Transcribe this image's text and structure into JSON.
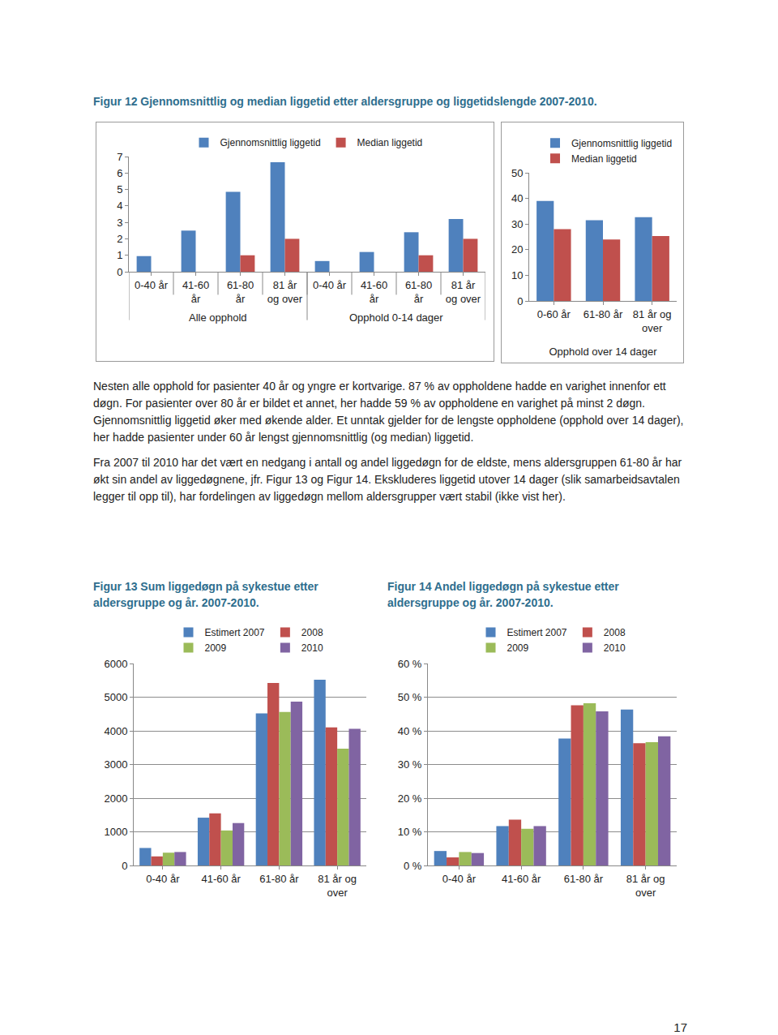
{
  "document": {
    "figure12_caption": "Figur 12 Gjennomsnittlig og median liggetid etter aldersgruppe og liggetidslengde 2007-2010.",
    "paragraphs": [
      "Nesten alle opphold for pasienter 40 år og yngre er kortvarige. 87 % av oppholdene hadde en varighet innenfor ett døgn. For pasienter over 80 år er bildet et annet, her hadde 59 % av oppholdene en varighet på minst 2 døgn. Gjennomsnittlig liggetid øker med økende alder. Et unntak gjelder for de lengste oppholdene (opphold over 14 dager), her hadde pasienter under 60 år lengst gjennomsnittlig (og median) liggetid.",
      "Fra 2007 til 2010 har det vært en nedgang i antall og andel liggedøgn for de eldste, mens aldersgruppen 61-80 år har økt sin andel av liggedøgnene, jfr. Figur 13 og Figur 14. Ekskluderes liggetid utover 14 dager (slik samarbeidsavtalen legger til opp til), har fordelingen av liggedøgn mellom aldersgrupper vært stabil (ikke vist her)."
    ],
    "page_number": "17"
  },
  "chart_data": [
    {
      "type": "bar",
      "groups": [
        {
          "name": "Alle opphold",
          "categories": [
            "0-40 år",
            "41-60 år",
            "61-80 år",
            "81 år og over"
          ]
        },
        {
          "name": "Opphold 0-14 dager",
          "categories": [
            "0-40 år",
            "41-60 år",
            "61-80 år",
            "81 år og over"
          ]
        }
      ],
      "series": [
        {
          "name": "Gjennomsnittlig liggetid",
          "color": "#4f81bd",
          "values": [
            0.95,
            2.5,
            4.85,
            6.65,
            0.65,
            1.2,
            2.4,
            3.2
          ]
        },
        {
          "name": "Median liggetid",
          "color": "#c0504d",
          "values": [
            0,
            0,
            1,
            2,
            0,
            0,
            1,
            2
          ]
        }
      ],
      "ylim": [
        0,
        7
      ],
      "yticks": [
        0,
        1,
        2,
        3,
        4,
        5,
        6,
        7
      ],
      "grid": false,
      "legend": "top"
    },
    {
      "type": "bar",
      "xlabel": "Opphold over 14 dager",
      "categories": [
        "0-60 år",
        "61-80 år",
        "81 år og over"
      ],
      "series": [
        {
          "name": "Gjennomsnittlig liggetid",
          "color": "#4f81bd",
          "values": [
            39,
            31.5,
            32.7
          ]
        },
        {
          "name": "Median liggetid",
          "color": "#c0504d",
          "values": [
            28,
            24,
            25.3
          ]
        }
      ],
      "ylim": [
        0,
        50
      ],
      "yticks": [
        0,
        10,
        20,
        30,
        40,
        50
      ],
      "grid": false,
      "legend": "top right"
    },
    {
      "type": "bar",
      "title": "Figur 13 Sum liggedøgn på sykestue etter aldersgruppe og år. 2007-2010.",
      "categories": [
        "0-40 år",
        "41-60 år",
        "61-80 år",
        "81 år og over"
      ],
      "series": [
        {
          "name": "Estimert 2007",
          "color": "#4f81bd",
          "values": [
            520,
            1420,
            4520,
            5520
          ]
        },
        {
          "name": "2008",
          "color": "#c0504d",
          "values": [
            270,
            1550,
            5420,
            4100
          ]
        },
        {
          "name": "2009",
          "color": "#9bbb59",
          "values": [
            380,
            1040,
            4560,
            3470
          ]
        },
        {
          "name": "2010",
          "color": "#8064a2",
          "values": [
            400,
            1260,
            4870,
            4060
          ]
        }
      ],
      "ylim": [
        0,
        6000
      ],
      "yticks": [
        0,
        1000,
        2000,
        3000,
        4000,
        5000,
        6000
      ],
      "grid": true,
      "legend": "top"
    },
    {
      "type": "bar",
      "title": "Figur 14 Andel liggedøgn på sykestue etter aldersgruppe og år. 2007-2010.",
      "categories": [
        "0-40 år",
        "41-60 år",
        "61-80 år",
        "81 år og over"
      ],
      "series": [
        {
          "name": "Estimert 2007",
          "color": "#4f81bd",
          "values": [
            4.3,
            11.7,
            37.7,
            46.3
          ]
        },
        {
          "name": "2008",
          "color": "#c0504d",
          "values": [
            2.4,
            13.6,
            47.6,
            36.3
          ]
        },
        {
          "name": "2009",
          "color": "#9bbb59",
          "values": [
            4,
            10.9,
            48.2,
            36.6
          ]
        },
        {
          "name": "2010",
          "color": "#8064a2",
          "values": [
            3.7,
            11.7,
            45.8,
            38.4
          ]
        }
      ],
      "ylim": [
        0,
        60
      ],
      "yticks": [
        {
          "value": 0,
          "label": "0 %"
        },
        {
          "value": 10,
          "label": "10 %"
        },
        {
          "value": 20,
          "label": "20 %"
        },
        {
          "value": 30,
          "label": "30 %"
        },
        {
          "value": 40,
          "label": "40 %"
        },
        {
          "value": 50,
          "label": "50 %"
        },
        {
          "value": 60,
          "label": "60 %"
        }
      ],
      "grid": true,
      "legend": "top"
    }
  ]
}
